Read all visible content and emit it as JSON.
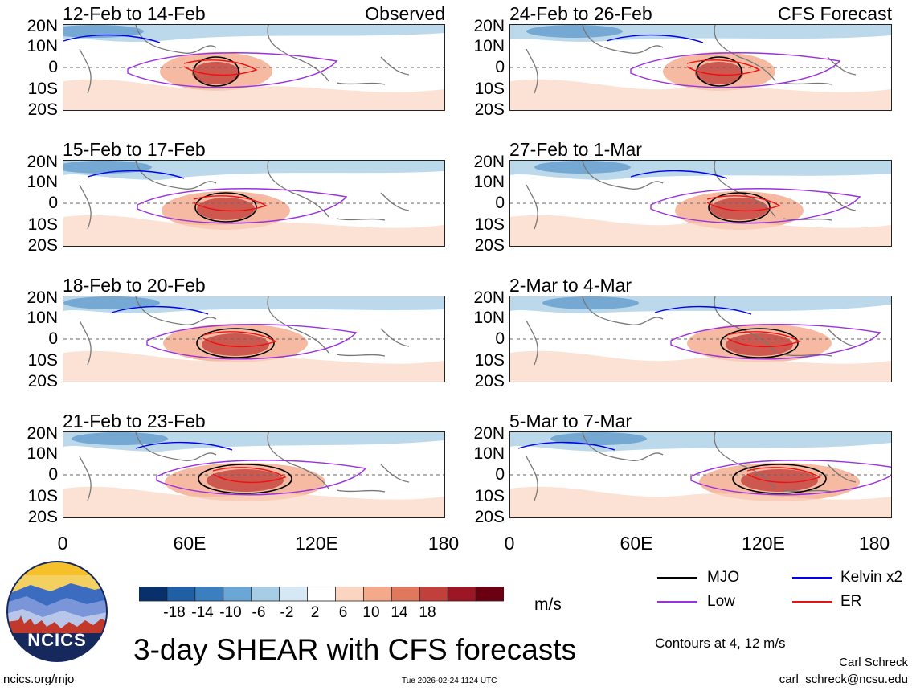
{
  "panels_left": [
    {
      "title": "12-Feb to 14-Feb",
      "tag": "Observed"
    },
    {
      "title": "15-Feb to 17-Feb",
      "tag": ""
    },
    {
      "title": "18-Feb to 20-Feb",
      "tag": ""
    },
    {
      "title": "21-Feb to 23-Feb",
      "tag": ""
    }
  ],
  "panels_right": [
    {
      "title": "24-Feb to 26-Feb",
      "tag": "CFS Forecast"
    },
    {
      "title": "27-Feb to 1-Mar",
      "tag": ""
    },
    {
      "title": "2-Mar to 4-Mar",
      "tag": ""
    },
    {
      "title": "5-Mar to 7-Mar",
      "tag": ""
    }
  ],
  "lat_labels": [
    "20N",
    "10N",
    "0",
    "10S",
    "20S"
  ],
  "lon_labels": [
    "0",
    "60E",
    "120E",
    "180"
  ],
  "colorbar": {
    "ticks": [
      "-18",
      "-14",
      "-10",
      "-6",
      "-2",
      "2",
      "6",
      "10",
      "14",
      "18"
    ],
    "colors": [
      "#08306b",
      "#1f5fa5",
      "#3a7fc0",
      "#6aa6d6",
      "#a6cce6",
      "#d6e8f3",
      "#ffffff",
      "#fbd5c2",
      "#f3a98a",
      "#e0785e",
      "#c2403b",
      "#9c1626",
      "#6a0012"
    ],
    "units": "m/s"
  },
  "legend": {
    "items": [
      {
        "label": "MJO",
        "color": "#000000"
      },
      {
        "label": "Kelvin x2",
        "color": "#0000ee"
      },
      {
        "label": "Low",
        "color": "#9a30e0"
      },
      {
        "label": "ER",
        "color": "#ee1111"
      }
    ],
    "contours_note": "Contours at 4, 12 m/s"
  },
  "footer": {
    "main_title": "3-day SHEAR with CFS forecasts",
    "logo_text": "NCICS",
    "site": "ncics.org/mjo",
    "timestamp": "Tue 2026-02-24 1124 UTC",
    "author": "Carl Schreck",
    "email": "carl_schreck@ncsu.edu"
  }
}
